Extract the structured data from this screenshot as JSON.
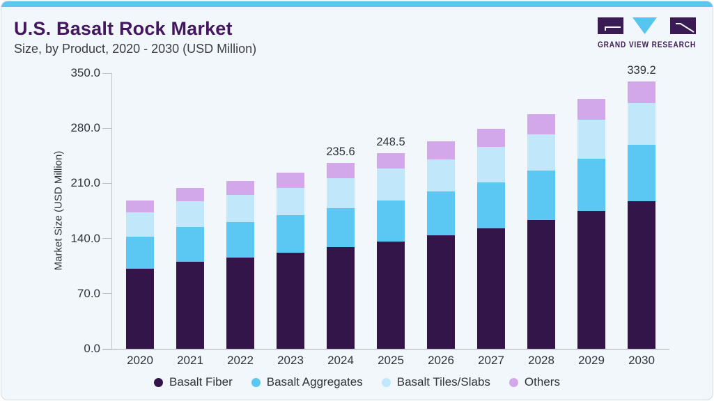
{
  "header": {
    "title": "U.S. Basalt Rock Market",
    "subtitle": "Size, by Product, 2020 - 2030 (USD Million)"
  },
  "logo": {
    "text": "GRAND VIEW RESEARCH"
  },
  "colors": {
    "accent_strip": "#5bc6f0",
    "card_background": "#f2f7fb",
    "title_purple": "#42175e",
    "logo_purple": "#3b1b53",
    "logo_triangle_blue": "#56c5f0",
    "axis_text": "#2f333b"
  },
  "chart_data": {
    "type": "bar",
    "stacked": true,
    "title": "U.S. Basalt Rock Market Size, by Product, 2020 - 2030 (USD Million)",
    "ylabel": "Market Size (USD Million)",
    "xlabel": "",
    "ylim": [
      0,
      350
    ],
    "yticks": [
      "0.0",
      "70.0",
      "140.0",
      "210.0",
      "280.0",
      "350.0"
    ],
    "grid": false,
    "legend_position": "bottom",
    "categories": [
      "2020",
      "2021",
      "2022",
      "2023",
      "2024",
      "2025",
      "2026",
      "2027",
      "2028",
      "2029",
      "2030"
    ],
    "series": [
      {
        "name": "Basalt Fiber",
        "color": "#331549",
        "values": [
          101.4,
          110.5,
          115.6,
          121.6,
          128.8,
          136.5,
          143.8,
          152.5,
          163.1,
          175.0,
          187.6
        ]
      },
      {
        "name": "Basalt Aggregates",
        "color": "#5bc7f3",
        "values": [
          41.2,
          43.9,
          45.1,
          47.7,
          49.8,
          52.0,
          55.8,
          58.9,
          63.0,
          66.0,
          71.4
        ]
      },
      {
        "name": "Basalt Tiles/Slabs",
        "color": "#c1e8fa",
        "values": [
          30.4,
          33.4,
          34.5,
          35.2,
          37.6,
          40.7,
          40.6,
          44.8,
          46.5,
          49.6,
          52.6
        ]
      },
      {
        "name": "Others",
        "color": "#d2a8ea",
        "values": [
          14.9,
          16.4,
          18.1,
          19.2,
          19.4,
          19.3,
          23.2,
          23.2,
          24.9,
          26.5,
          27.6
        ]
      }
    ],
    "data_labels": [
      {
        "category": "2024",
        "text": "235.6"
      },
      {
        "category": "2025",
        "text": "248.5"
      },
      {
        "category": "2030",
        "text": "339.2"
      }
    ]
  }
}
